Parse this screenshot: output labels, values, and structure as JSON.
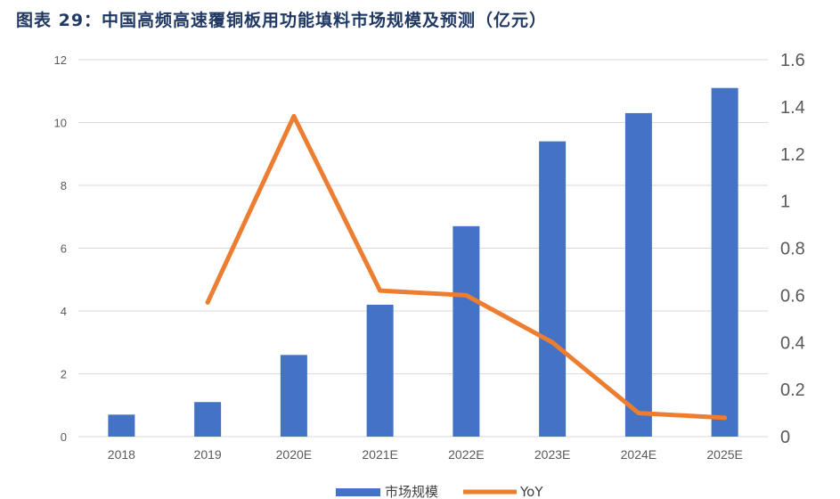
{
  "title": "图表 29：中国高频高速覆铜板用功能填料市场规模及预测（亿元）",
  "colors": {
    "bar": "#4472c4",
    "line": "#ed7d31",
    "grid": "#d9d9d9",
    "title": "#1f3864"
  },
  "chart_data": {
    "type": "bar+line",
    "title": "图表 29：中国高频高速覆铜板用功能填料市场规模及预测（亿元）",
    "categories": [
      "2018",
      "2019",
      "2020E",
      "2021E",
      "2022E",
      "2023E",
      "2024E",
      "2025E"
    ],
    "series": [
      {
        "name": "市场规模",
        "type": "bar",
        "axis": "left",
        "values": [
          0.7,
          1.1,
          2.6,
          4.2,
          6.7,
          9.4,
          10.3,
          11.1
        ]
      },
      {
        "name": "YoY",
        "type": "line",
        "axis": "right",
        "values": [
          null,
          0.57,
          1.36,
          0.62,
          0.6,
          0.4,
          0.1,
          0.08
        ]
      }
    ],
    "y_left": {
      "range": [
        0,
        12
      ],
      "ticks": [
        "0",
        "2",
        "4",
        "6",
        "8",
        "10",
        "12"
      ],
      "tick_values": [
        0,
        2,
        4,
        6,
        8,
        10,
        12
      ]
    },
    "y_right": {
      "range": [
        0,
        1.6
      ],
      "ticks": [
        "0",
        "0.2",
        "0.4",
        "0.6",
        "0.8",
        "1",
        "1.2",
        "1.4",
        "1.6"
      ],
      "tick_values": [
        0,
        0.2,
        0.4,
        0.6,
        0.8,
        1,
        1.2,
        1.4,
        1.6
      ]
    },
    "grid": true,
    "legend": {
      "position": "bottom",
      "entries": [
        "市场规模",
        "YoY"
      ]
    }
  }
}
